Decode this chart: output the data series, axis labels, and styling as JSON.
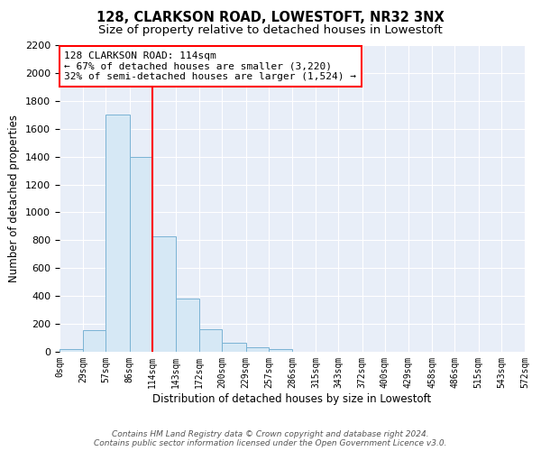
{
  "title": "128, CLARKSON ROAD, LOWESTOFT, NR32 3NX",
  "subtitle": "Size of property relative to detached houses in Lowestoft",
  "xlabel": "Distribution of detached houses by size in Lowestoft",
  "ylabel": "Number of detached properties",
  "bar_values": [
    20,
    155,
    1700,
    1400,
    830,
    385,
    160,
    65,
    30,
    20,
    0,
    0,
    0,
    0,
    0,
    0,
    0,
    0,
    0,
    0
  ],
  "bin_edges": [
    0,
    29,
    57,
    86,
    114,
    143,
    172,
    200,
    229,
    257,
    286,
    315,
    343,
    372,
    400,
    429,
    458,
    486,
    515,
    543,
    572
  ],
  "tick_labels": [
    "0sqm",
    "29sqm",
    "57sqm",
    "86sqm",
    "114sqm",
    "143sqm",
    "172sqm",
    "200sqm",
    "229sqm",
    "257sqm",
    "286sqm",
    "315sqm",
    "343sqm",
    "372sqm",
    "400sqm",
    "429sqm",
    "458sqm",
    "486sqm",
    "515sqm",
    "543sqm",
    "572sqm"
  ],
  "bar_color": "#d6e8f5",
  "bar_edge_color": "#7ab3d4",
  "vline_x": 114,
  "vline_color": "red",
  "ylim": [
    0,
    2200
  ],
  "yticks": [
    0,
    200,
    400,
    600,
    800,
    1000,
    1200,
    1400,
    1600,
    1800,
    2000,
    2200
  ],
  "annotation_title": "128 CLARKSON ROAD: 114sqm",
  "annotation_line1": "← 67% of detached houses are smaller (3,220)",
  "annotation_line2": "32% of semi-detached houses are larger (1,524) →",
  "footer_line1": "Contains HM Land Registry data © Crown copyright and database right 2024.",
  "footer_line2": "Contains public sector information licensed under the Open Government Licence v3.0.",
  "background_color": "#ffffff",
  "plot_bg_color": "#e8eef8",
  "title_fontsize": 10.5,
  "subtitle_fontsize": 9.5,
  "axis_label_fontsize": 8.5,
  "tick_fontsize": 7,
  "annotation_fontsize": 8,
  "footer_fontsize": 6.5
}
